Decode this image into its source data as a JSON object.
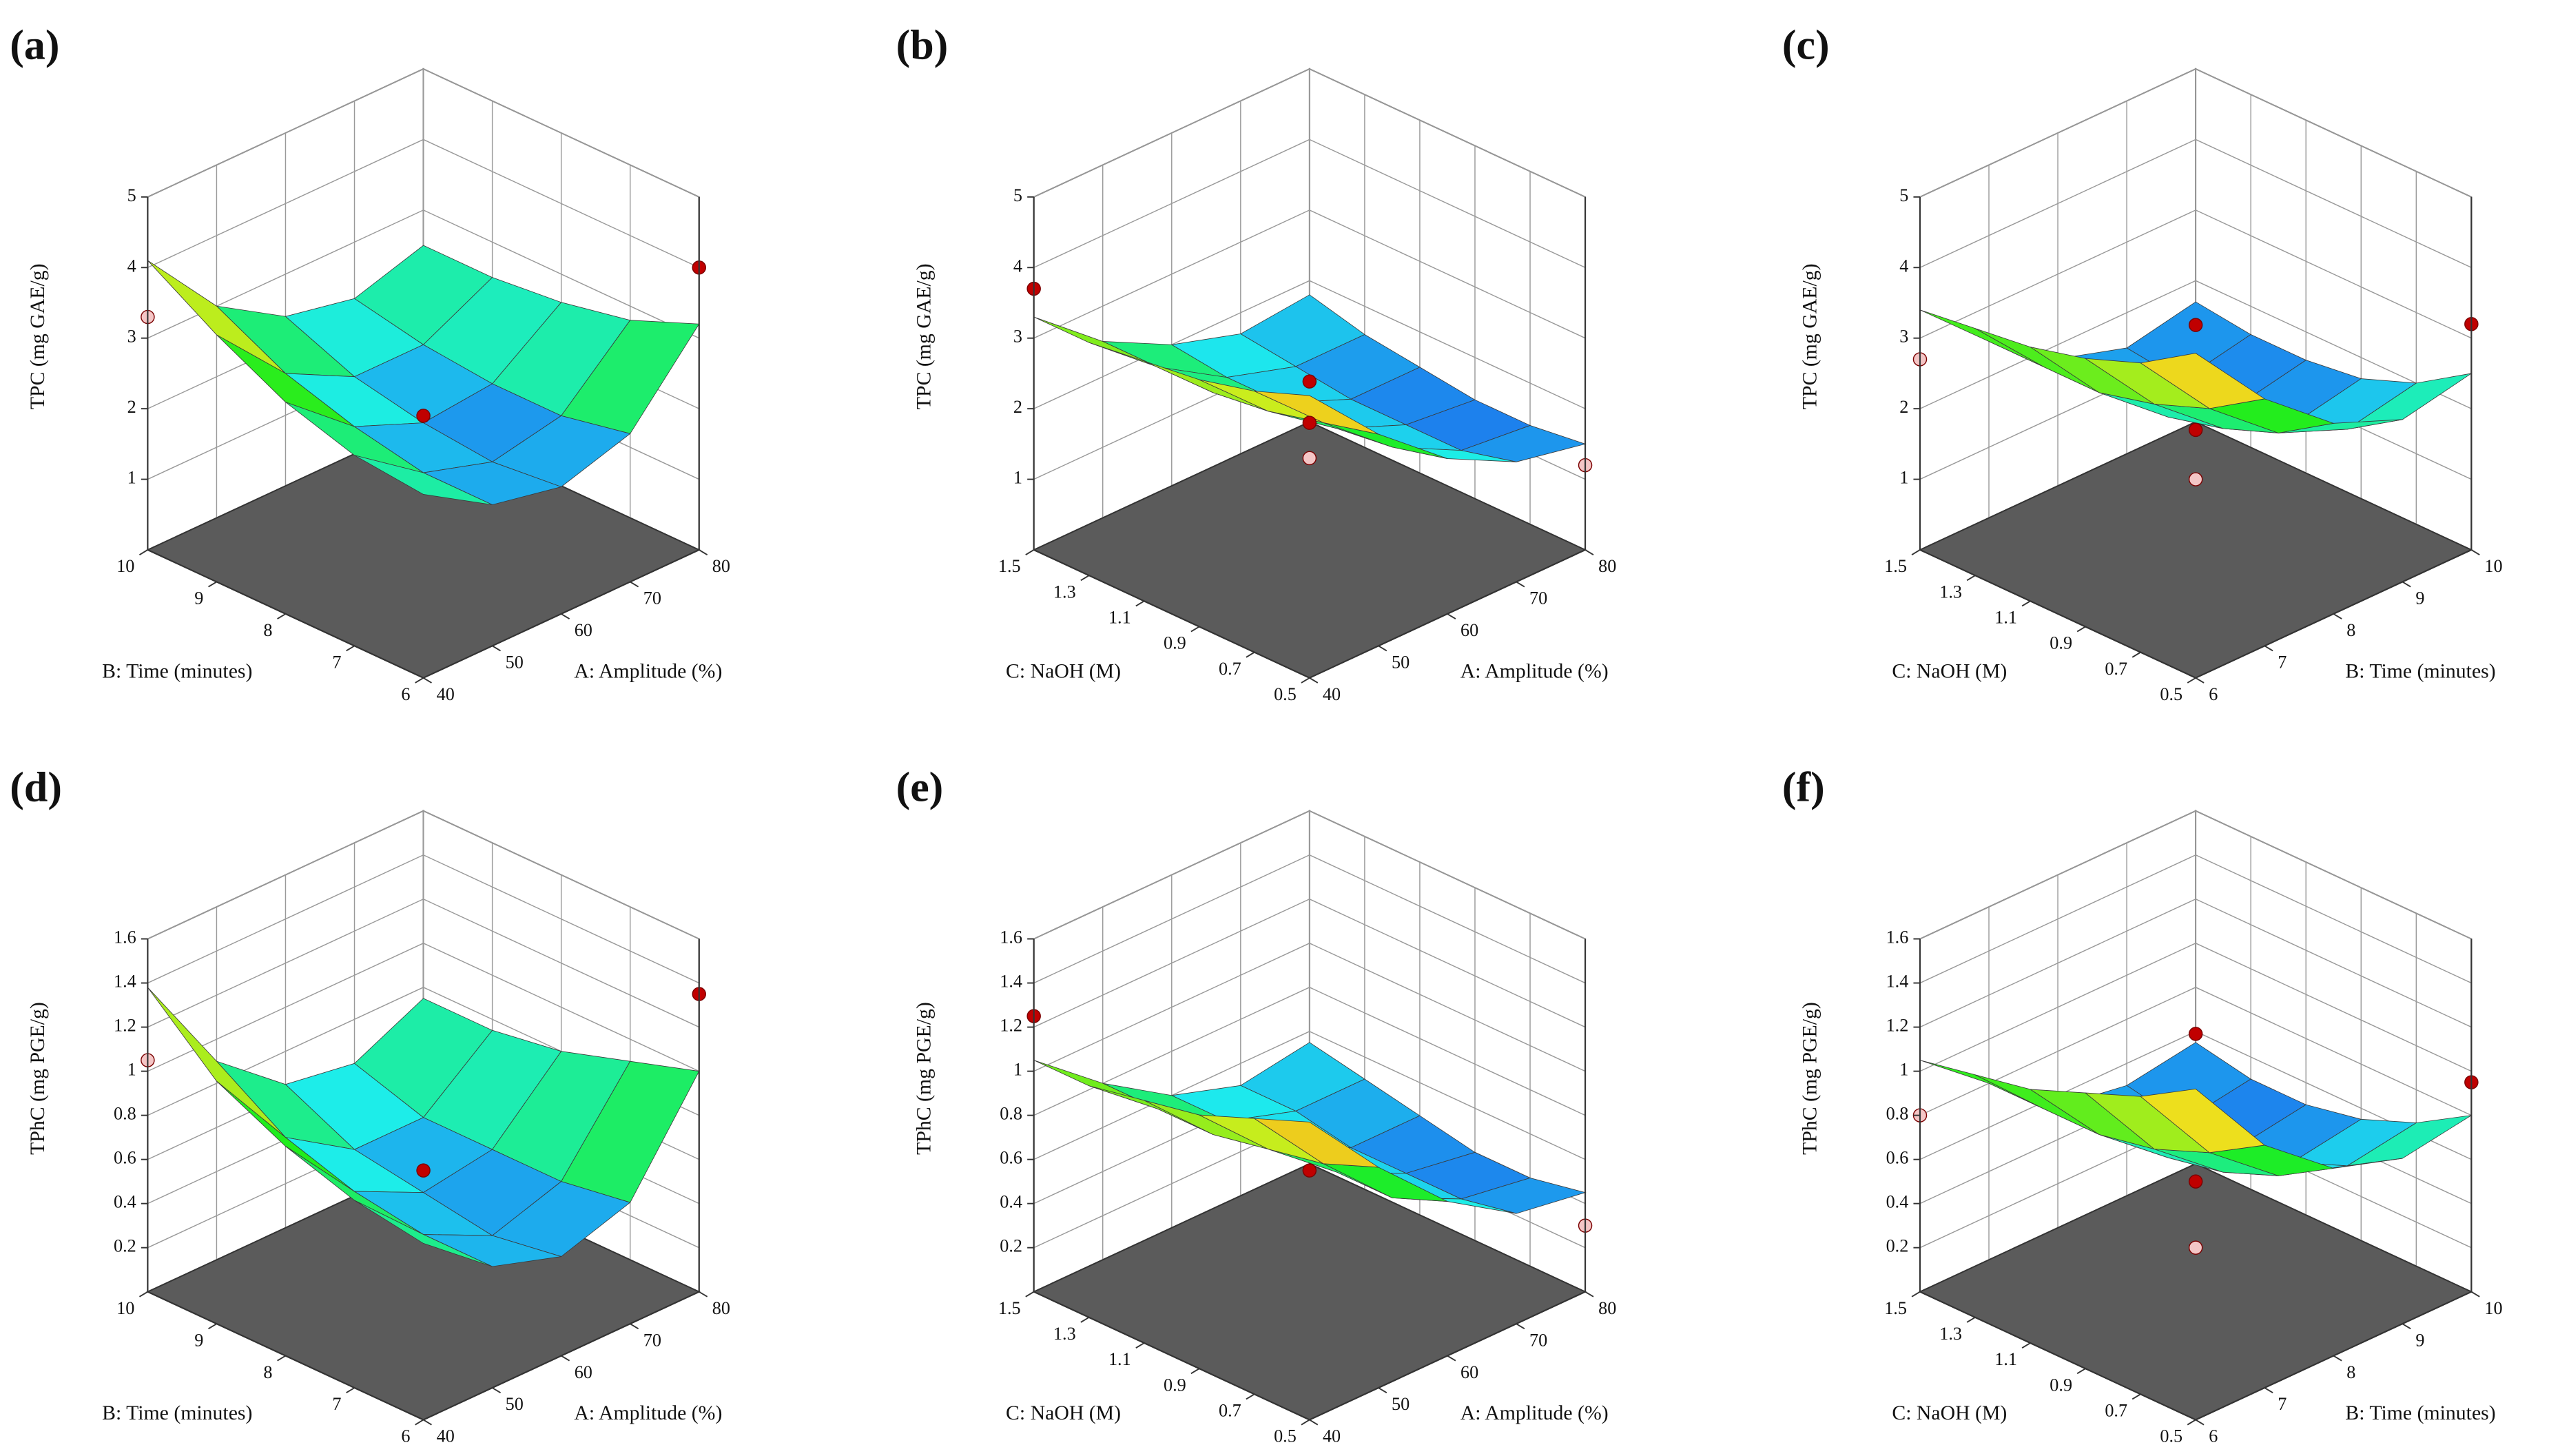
{
  "chart_data": [
    {
      "type": "surface",
      "label": "(a)",
      "xlabel": "A: Amplitude (%)",
      "ylabel": "B: Time (minutes)",
      "zlabel": "TPC (mg GAE/g)",
      "xlim": [
        40,
        80
      ],
      "xticks": [
        40,
        50,
        60,
        70,
        80
      ],
      "ylim": [
        6,
        10
      ],
      "yticks": [
        6,
        7,
        8,
        9,
        10
      ],
      "zlim": [
        0,
        5
      ],
      "zticks": [
        1,
        2,
        3,
        4,
        5
      ],
      "z": [
        [
          2.6,
          2.0,
          1.8,
          2.1,
          3.2
        ],
        [
          2.7,
          2.0,
          1.7,
          1.9,
          2.8
        ],
        [
          3.0,
          2.2,
          1.8,
          1.9,
          2.6
        ],
        [
          3.5,
          2.5,
          2.0,
          2.0,
          2.5
        ],
        [
          4.1,
          3.0,
          2.4,
          2.2,
          2.5
        ]
      ],
      "points": [
        {
          "x": 40,
          "y": 10,
          "z": 3.3,
          "color": "#f4c6c6"
        },
        {
          "x": 80,
          "y": 6,
          "z": 4.0,
          "color": "#c00000"
        },
        {
          "x": 60,
          "y": 8,
          "z": 1.9,
          "color": "#c00000"
        }
      ]
    },
    {
      "type": "surface",
      "label": "(b)",
      "xlabel": "A: Amplitude (%)",
      "ylabel": "C: NaOH  (M)",
      "zlabel": "TPC (mg GAE/g)",
      "xlim": [
        40,
        80
      ],
      "xticks": [
        40,
        50,
        60,
        70,
        80
      ],
      "ylim": [
        0.5,
        1.5
      ],
      "yticks": [
        0.5,
        0.7,
        0.9,
        1.1,
        1.3,
        1.5
      ],
      "zlim": [
        0,
        5
      ],
      "zticks": [
        1,
        2,
        3,
        4,
        5
      ],
      "z": [
        [
          4.0,
          3.0,
          2.2,
          1.7,
          1.5
        ],
        [
          3.7,
          2.8,
          2.0,
          1.5,
          1.4
        ],
        [
          3.5,
          2.6,
          1.9,
          1.5,
          1.4
        ],
        [
          3.4,
          2.5,
          1.9,
          1.5,
          1.5
        ],
        [
          3.3,
          2.5,
          1.9,
          1.6,
          1.6
        ],
        [
          3.3,
          2.5,
          2.0,
          1.7,
          1.8
        ]
      ],
      "points": [
        {
          "x": 40,
          "y": 1.5,
          "z": 3.7,
          "color": "#c00000"
        },
        {
          "x": 40,
          "y": 0.5,
          "z": 4.2,
          "color": "#c00000"
        },
        {
          "x": 60,
          "y": 1.0,
          "z": 1.8,
          "color": "#c00000"
        },
        {
          "x": 60,
          "y": 1.0,
          "z": 1.3,
          "color": "#f4c6c6"
        },
        {
          "x": 80,
          "y": 0.5,
          "z": 1.2,
          "color": "#f4c6c6"
        }
      ]
    },
    {
      "type": "surface",
      "label": "(c)",
      "xlabel": "B: Time (minutes)",
      "ylabel": "C: NaOH  (M)",
      "zlabel": "TPC (mg GAE/g)",
      "xlim": [
        6,
        10
      ],
      "xticks": [
        6,
        7,
        8,
        9,
        10
      ],
      "ylim": [
        0.5,
        1.5
      ],
      "yticks": [
        0.5,
        0.7,
        0.9,
        1.1,
        1.3,
        1.5
      ],
      "zlim": [
        0,
        5
      ],
      "zticks": [
        1,
        2,
        3,
        4,
        5
      ],
      "z": [
        [
          4.6,
          3.5,
          2.7,
          2.3,
          2.5
        ],
        [
          4.1,
          3.0,
          2.2,
          1.8,
          2.0
        ],
        [
          3.8,
          2.7,
          1.9,
          1.5,
          1.7
        ],
        [
          3.6,
          2.5,
          1.7,
          1.4,
          1.6
        ],
        [
          3.5,
          2.5,
          1.7,
          1.4,
          1.6
        ],
        [
          3.4,
          2.5,
          1.8,
          1.5,
          1.7
        ]
      ],
      "points": [
        {
          "x": 6,
          "y": 1.5,
          "z": 2.7,
          "color": "#f4c6c6"
        },
        {
          "x": 6,
          "y": 0.5,
          "z": 5.0,
          "color": "#c00000"
        },
        {
          "x": 10,
          "y": 0.5,
          "z": 3.2,
          "color": "#c00000"
        },
        {
          "x": 8,
          "y": 1.0,
          "z": 1.7,
          "color": "#c00000"
        },
        {
          "x": 8,
          "y": 1.0,
          "z": 1.0,
          "color": "#f4c6c6"
        }
      ]
    },
    {
      "type": "surface",
      "label": "(d)",
      "xlabel": "A: Amplitude (%)",
      "ylabel": "B: Time (minutes)",
      "zlabel": "TPhC (mg PGE/g)",
      "xlim": [
        40,
        80
      ],
      "xticks": [
        40,
        50,
        60,
        70,
        80
      ],
      "ylim": [
        6,
        10
      ],
      "yticks": [
        6,
        7,
        8,
        9,
        10
      ],
      "zlim": [
        0,
        1.6
      ],
      "zticks": [
        0.2,
        0.4,
        0.6,
        0.8,
        1,
        1.2,
        1.4,
        1.6
      ],
      "z": [
        [
          0.8,
          0.55,
          0.45,
          0.55,
          1.0
        ],
        [
          0.85,
          0.55,
          0.4,
          0.5,
          0.9
        ],
        [
          0.95,
          0.6,
          0.45,
          0.5,
          0.8
        ],
        [
          1.1,
          0.7,
          0.5,
          0.5,
          0.75
        ],
        [
          1.38,
          0.9,
          0.65,
          0.6,
          0.75
        ]
      ],
      "points": [
        {
          "x": 40,
          "y": 10,
          "z": 1.05,
          "color": "#f4c6c6"
        },
        {
          "x": 80,
          "y": 6,
          "z": 1.35,
          "color": "#c00000"
        },
        {
          "x": 60,
          "y": 8,
          "z": 0.55,
          "color": "#c00000"
        }
      ]
    },
    {
      "type": "surface",
      "label": "(e)",
      "xlabel": "A: Amplitude (%)",
      "ylabel": "C: NaOH  (M)",
      "zlabel": "TPhC (mg PGE/g)",
      "xlim": [
        40,
        80
      ],
      "xticks": [
        40,
        50,
        60,
        70,
        80
      ],
      "ylim": [
        0.5,
        1.5
      ],
      "yticks": [
        0.5,
        0.7,
        0.9,
        1.1,
        1.3,
        1.5
      ],
      "zlim": [
        0,
        1.6
      ],
      "zticks": [
        0.2,
        0.4,
        0.6,
        0.8,
        1,
        1.2,
        1.4,
        1.6
      ],
      "z": [
        [
          1.35,
          1.0,
          0.7,
          0.5,
          0.45
        ],
        [
          1.25,
          0.9,
          0.6,
          0.45,
          0.4
        ],
        [
          1.15,
          0.85,
          0.6,
          0.45,
          0.4
        ],
        [
          1.1,
          0.8,
          0.6,
          0.45,
          0.45
        ],
        [
          1.05,
          0.8,
          0.6,
          0.5,
          0.5
        ],
        [
          1.05,
          0.8,
          0.6,
          0.5,
          0.55
        ]
      ],
      "points": [
        {
          "x": 40,
          "y": 1.5,
          "z": 1.25,
          "color": "#c00000"
        },
        {
          "x": 60,
          "y": 1.0,
          "z": 0.55,
          "color": "#c00000"
        },
        {
          "x": 80,
          "y": 0.5,
          "z": 0.3,
          "color": "#f4c6c6"
        }
      ]
    },
    {
      "type": "surface",
      "label": "(f)",
      "xlabel": "B: Time (minutes)",
      "ylabel": "C: NaOH  (M)",
      "zlabel": "TPhC (mg PGE/g)",
      "xlim": [
        6,
        10
      ],
      "xticks": [
        6,
        7,
        8,
        9,
        10
      ],
      "ylim": [
        0.5,
        1.5
      ],
      "yticks": [
        0.5,
        0.7,
        0.9,
        1.1,
        1.3,
        1.5
      ],
      "zlim": [
        0,
        1.6
      ],
      "zticks": [
        0.2,
        0.4,
        0.6,
        0.8,
        1,
        1.2,
        1.4,
        1.6
      ],
      "z": [
        [
          1.5,
          1.1,
          0.85,
          0.75,
          0.8
        ],
        [
          1.35,
          0.95,
          0.7,
          0.6,
          0.65
        ],
        [
          1.25,
          0.85,
          0.6,
          0.5,
          0.55
        ],
        [
          1.15,
          0.8,
          0.55,
          0.45,
          0.5
        ],
        [
          1.1,
          0.8,
          0.55,
          0.45,
          0.5
        ],
        [
          1.05,
          0.8,
          0.55,
          0.5,
          0.55
        ]
      ],
      "points": [
        {
          "x": 6,
          "y": 1.5,
          "z": 0.8,
          "color": "#f4c6c6"
        },
        {
          "x": 6,
          "y": 0.5,
          "z": 1.75,
          "color": "#c00000"
        },
        {
          "x": 10,
          "y": 0.5,
          "z": 0.95,
          "color": "#c00000"
        },
        {
          "x": 8,
          "y": 1.0,
          "z": 0.5,
          "color": "#c00000"
        },
        {
          "x": 8,
          "y": 1.0,
          "z": 0.2,
          "color": "#f4c6c6"
        }
      ]
    }
  ]
}
